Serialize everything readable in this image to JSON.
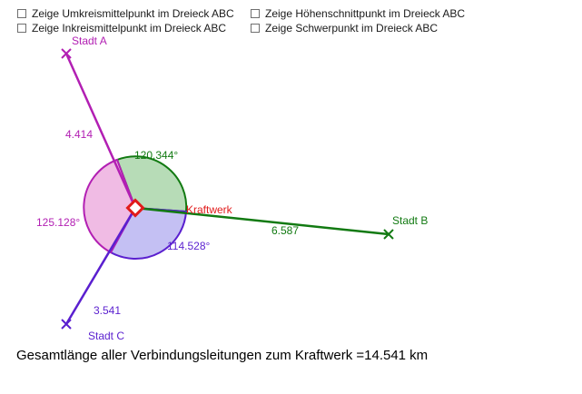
{
  "checkboxes": [
    {
      "label": "Zeige Umkreismittelpunkt im Dreieck ABC",
      "checked": false
    },
    {
      "label": "Zeige Inkreismittelpunkt im Dreieck ABC",
      "checked": false
    },
    {
      "label": "Zeige Höhenschnittpunkt im Dreieck ABC",
      "checked": false
    },
    {
      "label": "Zeige Schwerpunkt im Dreieck ABC",
      "checked": false
    }
  ],
  "points": {
    "a": {
      "label": "Stadt A",
      "color": "#b21fb3"
    },
    "b": {
      "label": "Stadt B",
      "color": "#127a12"
    },
    "c": {
      "label": "Stadt C",
      "color": "#5a1fcf"
    },
    "plant": {
      "label": "Kraftwerk",
      "color": "#e11b1b"
    }
  },
  "segments": {
    "a": "4.414",
    "b": "6.587",
    "c": "3.541"
  },
  "angles": {
    "ab": "120.344°",
    "bc": "114.528°",
    "ca": "125.128°"
  },
  "colors": {
    "angle_ab_fill": "#b7dcb7",
    "angle_bc_fill": "#c4c0f3",
    "angle_ca_fill": "#f0bbe4"
  },
  "summary": "Gesamtlänge aller Verbindungsleitungen zum Kraftwerk =14.541 km"
}
